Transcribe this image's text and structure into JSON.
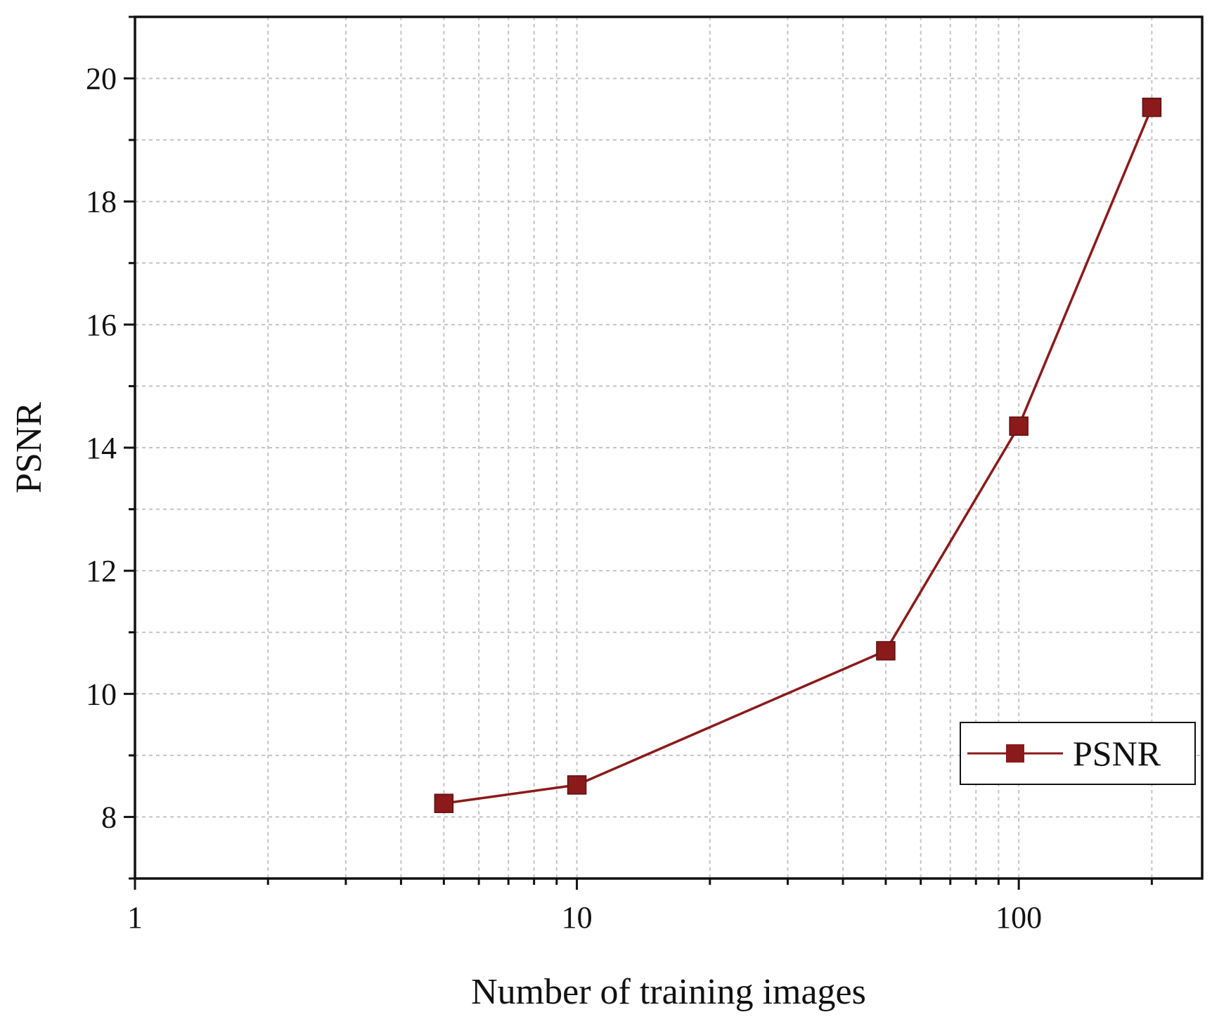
{
  "chart_data": {
    "type": "line",
    "xlabel": "Number of training images",
    "ylabel": "PSNR",
    "xscale": "log",
    "xlim": [
      1,
      260
    ],
    "ylim": [
      7,
      21
    ],
    "xticks": [
      1,
      10,
      100
    ],
    "xtick_labels": [
      "1",
      "10",
      "100"
    ],
    "yticks": [
      8,
      10,
      12,
      14,
      16,
      18,
      20
    ],
    "ytick_labels": [
      "8",
      "10",
      "12",
      "14",
      "16",
      "18",
      "20"
    ],
    "grid": true,
    "legend_position": "bottom-right",
    "series": [
      {
        "name": "PSNR",
        "color": "#8b1a1a",
        "marker": "square",
        "x": [
          5,
          10,
          50,
          100,
          200
        ],
        "y": [
          8.22,
          8.52,
          10.7,
          14.35,
          19.53
        ]
      }
    ]
  }
}
